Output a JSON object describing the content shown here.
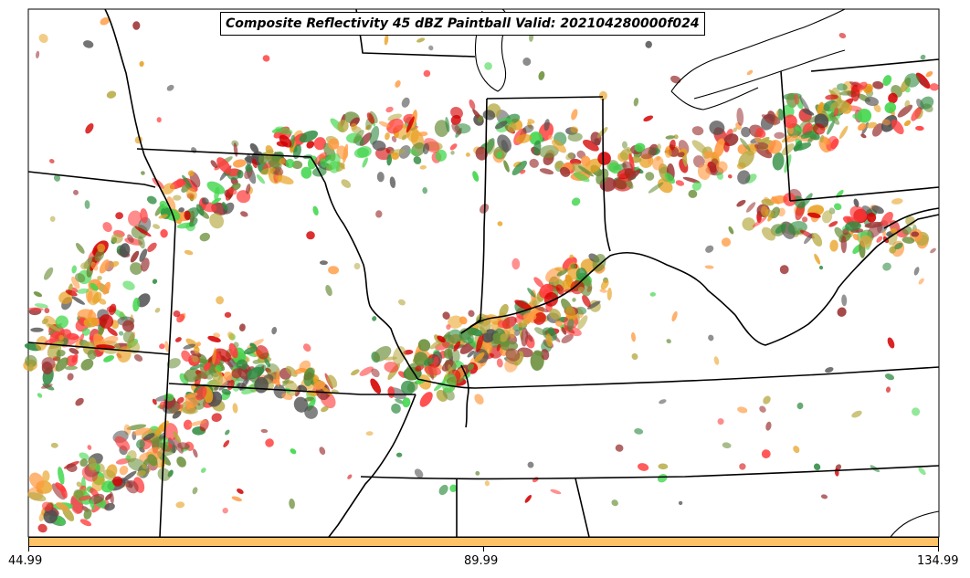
{
  "title": "Composite Reflectivity 45 dBZ Paintball Valid: 202104280000f024",
  "colorbar": {
    "color": "#ffc266",
    "ticks": [
      "44.99",
      "89.99",
      "134.99"
    ]
  },
  "legend_colors": [
    "#ff3b3b",
    "#e8a020",
    "#ff9a40",
    "#6b8f3a",
    "#b5a840",
    "#9c3535",
    "#4f4f4f",
    "#3fd64a",
    "#2e8b40",
    "#d40000"
  ],
  "map": {
    "borders": "state and great lakes outlines",
    "background": "#ffffff",
    "border_color": "#000000"
  }
}
